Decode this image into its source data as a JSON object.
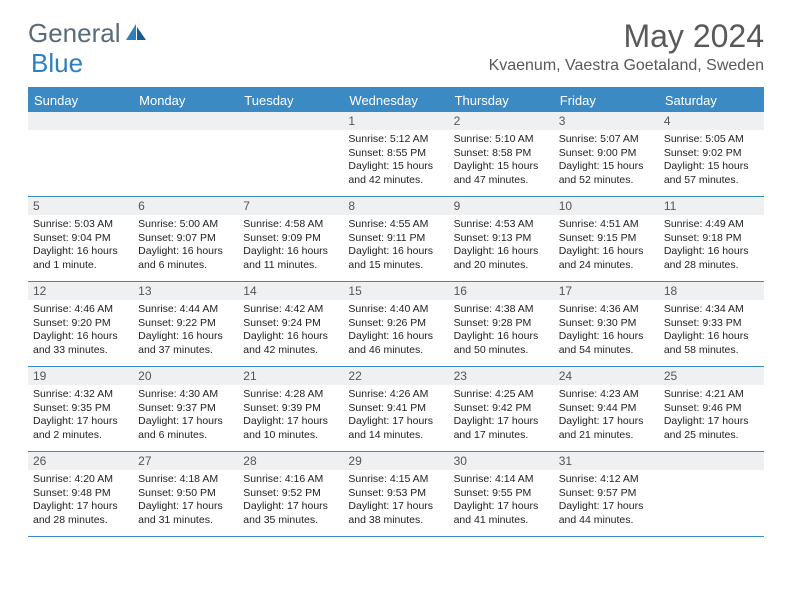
{
  "brand": {
    "part1": "General",
    "part2": "Blue"
  },
  "title": "May 2024",
  "location": "Kvaenum, Vaestra Goetaland, Sweden",
  "colors": {
    "header_bg": "#3b8ac4",
    "header_text": "#ffffff",
    "daynum_bg": "#eef0f2",
    "text": "#222222",
    "title_color": "#58595b"
  },
  "day_names": [
    "Sunday",
    "Monday",
    "Tuesday",
    "Wednesday",
    "Thursday",
    "Friday",
    "Saturday"
  ],
  "weeks": [
    [
      {
        "empty": true
      },
      {
        "empty": true
      },
      {
        "empty": true
      },
      {
        "num": "1",
        "sunrise": "Sunrise: 5:12 AM",
        "sunset": "Sunset: 8:55 PM",
        "day1": "Daylight: 15 hours",
        "day2": "and 42 minutes."
      },
      {
        "num": "2",
        "sunrise": "Sunrise: 5:10 AM",
        "sunset": "Sunset: 8:58 PM",
        "day1": "Daylight: 15 hours",
        "day2": "and 47 minutes."
      },
      {
        "num": "3",
        "sunrise": "Sunrise: 5:07 AM",
        "sunset": "Sunset: 9:00 PM",
        "day1": "Daylight: 15 hours",
        "day2": "and 52 minutes."
      },
      {
        "num": "4",
        "sunrise": "Sunrise: 5:05 AM",
        "sunset": "Sunset: 9:02 PM",
        "day1": "Daylight: 15 hours",
        "day2": "and 57 minutes."
      }
    ],
    [
      {
        "num": "5",
        "sunrise": "Sunrise: 5:03 AM",
        "sunset": "Sunset: 9:04 PM",
        "day1": "Daylight: 16 hours",
        "day2": "and 1 minute."
      },
      {
        "num": "6",
        "sunrise": "Sunrise: 5:00 AM",
        "sunset": "Sunset: 9:07 PM",
        "day1": "Daylight: 16 hours",
        "day2": "and 6 minutes."
      },
      {
        "num": "7",
        "sunrise": "Sunrise: 4:58 AM",
        "sunset": "Sunset: 9:09 PM",
        "day1": "Daylight: 16 hours",
        "day2": "and 11 minutes."
      },
      {
        "num": "8",
        "sunrise": "Sunrise: 4:55 AM",
        "sunset": "Sunset: 9:11 PM",
        "day1": "Daylight: 16 hours",
        "day2": "and 15 minutes."
      },
      {
        "num": "9",
        "sunrise": "Sunrise: 4:53 AM",
        "sunset": "Sunset: 9:13 PM",
        "day1": "Daylight: 16 hours",
        "day2": "and 20 minutes."
      },
      {
        "num": "10",
        "sunrise": "Sunrise: 4:51 AM",
        "sunset": "Sunset: 9:15 PM",
        "day1": "Daylight: 16 hours",
        "day2": "and 24 minutes."
      },
      {
        "num": "11",
        "sunrise": "Sunrise: 4:49 AM",
        "sunset": "Sunset: 9:18 PM",
        "day1": "Daylight: 16 hours",
        "day2": "and 28 minutes."
      }
    ],
    [
      {
        "num": "12",
        "sunrise": "Sunrise: 4:46 AM",
        "sunset": "Sunset: 9:20 PM",
        "day1": "Daylight: 16 hours",
        "day2": "and 33 minutes."
      },
      {
        "num": "13",
        "sunrise": "Sunrise: 4:44 AM",
        "sunset": "Sunset: 9:22 PM",
        "day1": "Daylight: 16 hours",
        "day2": "and 37 minutes."
      },
      {
        "num": "14",
        "sunrise": "Sunrise: 4:42 AM",
        "sunset": "Sunset: 9:24 PM",
        "day1": "Daylight: 16 hours",
        "day2": "and 42 minutes."
      },
      {
        "num": "15",
        "sunrise": "Sunrise: 4:40 AM",
        "sunset": "Sunset: 9:26 PM",
        "day1": "Daylight: 16 hours",
        "day2": "and 46 minutes."
      },
      {
        "num": "16",
        "sunrise": "Sunrise: 4:38 AM",
        "sunset": "Sunset: 9:28 PM",
        "day1": "Daylight: 16 hours",
        "day2": "and 50 minutes."
      },
      {
        "num": "17",
        "sunrise": "Sunrise: 4:36 AM",
        "sunset": "Sunset: 9:30 PM",
        "day1": "Daylight: 16 hours",
        "day2": "and 54 minutes."
      },
      {
        "num": "18",
        "sunrise": "Sunrise: 4:34 AM",
        "sunset": "Sunset: 9:33 PM",
        "day1": "Daylight: 16 hours",
        "day2": "and 58 minutes."
      }
    ],
    [
      {
        "num": "19",
        "sunrise": "Sunrise: 4:32 AM",
        "sunset": "Sunset: 9:35 PM",
        "day1": "Daylight: 17 hours",
        "day2": "and 2 minutes."
      },
      {
        "num": "20",
        "sunrise": "Sunrise: 4:30 AM",
        "sunset": "Sunset: 9:37 PM",
        "day1": "Daylight: 17 hours",
        "day2": "and 6 minutes."
      },
      {
        "num": "21",
        "sunrise": "Sunrise: 4:28 AM",
        "sunset": "Sunset: 9:39 PM",
        "day1": "Daylight: 17 hours",
        "day2": "and 10 minutes."
      },
      {
        "num": "22",
        "sunrise": "Sunrise: 4:26 AM",
        "sunset": "Sunset: 9:41 PM",
        "day1": "Daylight: 17 hours",
        "day2": "and 14 minutes."
      },
      {
        "num": "23",
        "sunrise": "Sunrise: 4:25 AM",
        "sunset": "Sunset: 9:42 PM",
        "day1": "Daylight: 17 hours",
        "day2": "and 17 minutes."
      },
      {
        "num": "24",
        "sunrise": "Sunrise: 4:23 AM",
        "sunset": "Sunset: 9:44 PM",
        "day1": "Daylight: 17 hours",
        "day2": "and 21 minutes."
      },
      {
        "num": "25",
        "sunrise": "Sunrise: 4:21 AM",
        "sunset": "Sunset: 9:46 PM",
        "day1": "Daylight: 17 hours",
        "day2": "and 25 minutes."
      }
    ],
    [
      {
        "num": "26",
        "sunrise": "Sunrise: 4:20 AM",
        "sunset": "Sunset: 9:48 PM",
        "day1": "Daylight: 17 hours",
        "day2": "and 28 minutes."
      },
      {
        "num": "27",
        "sunrise": "Sunrise: 4:18 AM",
        "sunset": "Sunset: 9:50 PM",
        "day1": "Daylight: 17 hours",
        "day2": "and 31 minutes."
      },
      {
        "num": "28",
        "sunrise": "Sunrise: 4:16 AM",
        "sunset": "Sunset: 9:52 PM",
        "day1": "Daylight: 17 hours",
        "day2": "and 35 minutes."
      },
      {
        "num": "29",
        "sunrise": "Sunrise: 4:15 AM",
        "sunset": "Sunset: 9:53 PM",
        "day1": "Daylight: 17 hours",
        "day2": "and 38 minutes."
      },
      {
        "num": "30",
        "sunrise": "Sunrise: 4:14 AM",
        "sunset": "Sunset: 9:55 PM",
        "day1": "Daylight: 17 hours",
        "day2": "and 41 minutes."
      },
      {
        "num": "31",
        "sunrise": "Sunrise: 4:12 AM",
        "sunset": "Sunset: 9:57 PM",
        "day1": "Daylight: 17 hours",
        "day2": "and 44 minutes."
      },
      {
        "empty": true
      }
    ]
  ]
}
